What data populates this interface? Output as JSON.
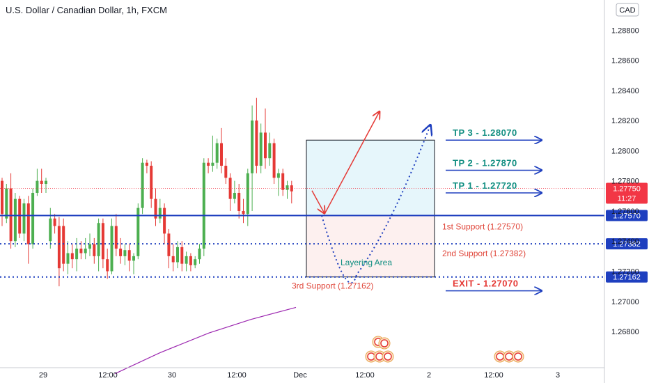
{
  "chart_data": {
    "type": "candlestick",
    "title": "U.S. Dollar / Canadian Dollar, 1h, FXCM",
    "currency": "CAD",
    "y_axis": {
      "range": [
        1.2656,
        1.29
      ],
      "ticks": [
        "1.28800",
        "1.28600",
        "1.28400",
        "1.28200",
        "1.28000",
        "1.27800",
        "1.27600",
        "1.27400",
        "1.27200",
        "1.27000",
        "1.26800"
      ]
    },
    "x_axis": {
      "ticks": [
        {
          "label": "29",
          "pos": 62
        },
        {
          "label": "12:00",
          "pos": 155
        },
        {
          "label": "30",
          "pos": 247
        },
        {
          "label": "12:00",
          "pos": 340
        },
        {
          "label": "Dec",
          "pos": 431
        },
        {
          "label": "12:00",
          "pos": 524
        },
        {
          "label": "2",
          "pos": 616
        },
        {
          "label": "12:00",
          "pos": 709
        },
        {
          "label": "3",
          "pos": 801
        }
      ]
    },
    "colors": {
      "up": "#4caf50",
      "down": "#e53935",
      "level": "#1e3fbf",
      "tp": "#138f82",
      "support": "#e0463a",
      "exit": "#e53935",
      "ma": "#9c27b0",
      "price": "#f23645"
    },
    "candles": [
      [
        1.278,
        1.2758,
        1.2782,
        1.275
      ],
      [
        1.2755,
        1.2775,
        1.2778,
        1.2752
      ],
      [
        1.2775,
        1.274,
        1.2785,
        1.2735
      ],
      [
        1.274,
        1.2768,
        1.2772,
        1.2736
      ],
      [
        1.2768,
        1.2745,
        1.277,
        1.2742
      ],
      [
        1.2745,
        1.2765,
        1.2768,
        1.274
      ],
      [
        1.2765,
        1.2738,
        1.277,
        1.2725
      ],
      [
        1.2738,
        1.2772,
        1.2775,
        1.2735
      ],
      [
        1.2772,
        1.278,
        1.2788,
        1.277
      ],
      [
        1.278,
        1.2778,
        1.2788,
        1.2772
      ],
      [
        1.2778,
        1.278,
        1.2782,
        1.2772
      ],
      [
        1.274,
        1.2755,
        1.2762,
        1.2735
      ],
      [
        1.2755,
        1.275,
        1.2758,
        1.2745
      ],
      [
        1.275,
        1.2722,
        1.2756,
        1.271
      ],
      [
        1.275,
        1.2725,
        1.2755,
        1.272
      ],
      [
        1.2725,
        1.2732,
        1.274,
        1.2718
      ],
      [
        1.2732,
        1.2728,
        1.2738,
        1.2722
      ],
      [
        1.2728,
        1.2735,
        1.2742,
        1.272
      ],
      [
        1.2735,
        1.2732,
        1.274,
        1.2728
      ],
      [
        1.2732,
        1.2735,
        1.2742,
        1.2728
      ],
      [
        1.2735,
        1.2738,
        1.2745,
        1.273
      ],
      [
        1.2738,
        1.273,
        1.2742,
        1.2725
      ],
      [
        1.273,
        1.2752,
        1.2755,
        1.272
      ],
      [
        1.2752,
        1.2728,
        1.2755,
        1.2722
      ],
      [
        1.2728,
        1.272,
        1.2735,
        1.2715
      ],
      [
        1.272,
        1.275,
        1.2755,
        1.2718
      ],
      [
        1.275,
        1.2735,
        1.2758,
        1.273
      ],
      [
        1.2735,
        1.273,
        1.2742,
        1.2725
      ],
      [
        1.273,
        1.2734,
        1.2738,
        1.2724
      ],
      [
        1.2734,
        1.2727,
        1.2738,
        1.272
      ],
      [
        1.2727,
        1.273,
        1.2732,
        1.2718
      ],
      [
        1.273,
        1.2762,
        1.2765,
        1.2728
      ],
      [
        1.2762,
        1.2792,
        1.2795,
        1.2758
      ],
      [
        1.2792,
        1.279,
        1.2794,
        1.2785
      ],
      [
        1.279,
        1.2768,
        1.2793,
        1.2762
      ],
      [
        1.2768,
        1.2755,
        1.2775,
        1.275
      ],
      [
        1.2755,
        1.2762,
        1.2768,
        1.2752
      ],
      [
        1.2762,
        1.2745,
        1.2765,
        1.2738
      ],
      [
        1.2745,
        1.273,
        1.2748,
        1.2722
      ],
      [
        1.273,
        1.2726,
        1.2738,
        1.272
      ],
      [
        1.2726,
        1.2736,
        1.274,
        1.2722
      ],
      [
        1.2736,
        1.2725,
        1.274,
        1.272
      ],
      [
        1.2725,
        1.273,
        1.2733,
        1.272
      ],
      [
        1.273,
        1.2724,
        1.2732,
        1.272
      ],
      [
        1.2724,
        1.2728,
        1.273,
        1.2722
      ],
      [
        1.2728,
        1.2735,
        1.2738,
        1.2725
      ],
      [
        1.2735,
        1.2792,
        1.2795,
        1.273
      ],
      [
        1.2792,
        1.279,
        1.2795,
        1.2785
      ],
      [
        1.279,
        1.2792,
        1.281,
        1.2786
      ],
      [
        1.2792,
        1.2805,
        1.2808,
        1.2788
      ],
      [
        1.2805,
        1.279,
        1.2815,
        1.2785
      ],
      [
        1.279,
        1.2782,
        1.2795,
        1.2778
      ],
      [
        1.2782,
        1.2768,
        1.2785,
        1.276
      ],
      [
        1.2768,
        1.2772,
        1.278,
        1.2765
      ],
      [
        1.2772,
        1.276,
        1.2778,
        1.2755
      ],
      [
        1.276,
        1.2758,
        1.2768,
        1.2752
      ],
      [
        1.2758,
        1.2785,
        1.2788,
        1.275
      ],
      [
        1.2785,
        1.282,
        1.283,
        1.276
      ],
      [
        1.282,
        1.279,
        1.2835,
        1.2785
      ],
      [
        1.279,
        1.2812,
        1.2818,
        1.2785
      ],
      [
        1.2812,
        1.2795,
        1.2828,
        1.2788
      ],
      [
        1.2795,
        1.2805,
        1.2812,
        1.279
      ],
      [
        1.2805,
        1.2782,
        1.2808,
        1.2778
      ],
      [
        1.2782,
        1.2785,
        1.2788,
        1.277
      ],
      [
        1.2785,
        1.2774,
        1.2788,
        1.277
      ],
      [
        1.2774,
        1.2777,
        1.278,
        1.2768
      ],
      [
        1.2777,
        1.2773,
        1.278,
        1.2765
      ]
    ],
    "levels": [
      {
        "name": "1st support line",
        "price": 1.2757,
        "style": "solid",
        "badge": "1.27570"
      },
      {
        "name": "2nd support line",
        "price": 1.27382,
        "style": "dotted",
        "badge": "1.27382"
      },
      {
        "name": "3rd support line",
        "price": 1.27162,
        "style": "dotted",
        "badge": "1.27162"
      },
      {
        "name": "current price line",
        "price": 1.2775,
        "style": "price",
        "badge": "1.27750",
        "countdown": "11:27"
      }
    ],
    "labels": {
      "tp3": "TP 3 - 1.28070",
      "tp2": "TP 2 - 1.27870",
      "tp1": "TP 1 - 1.27720",
      "exit": "EXIT - 1.27070",
      "s1": "1st Support (1.27570)",
      "s2": "2nd Support (1.27382)",
      "s3": "3rd Support (1.27162)",
      "layering": "Layering Area"
    },
    "target_prices": {
      "tp3": 1.2807,
      "tp2": 1.2787,
      "tp1": 1.2772,
      "exit": 1.2707
    },
    "zone": {
      "top": 1.2807,
      "mid": 1.2757,
      "bottom": 1.27162
    },
    "ma": [
      {
        "x": 165,
        "y": 1.2652
      },
      {
        "x": 230,
        "y": 1.2666
      },
      {
        "x": 300,
        "y": 1.2679
      },
      {
        "x": 360,
        "y": 1.2688
      },
      {
        "x": 425,
        "y": 1.2696
      }
    ]
  }
}
